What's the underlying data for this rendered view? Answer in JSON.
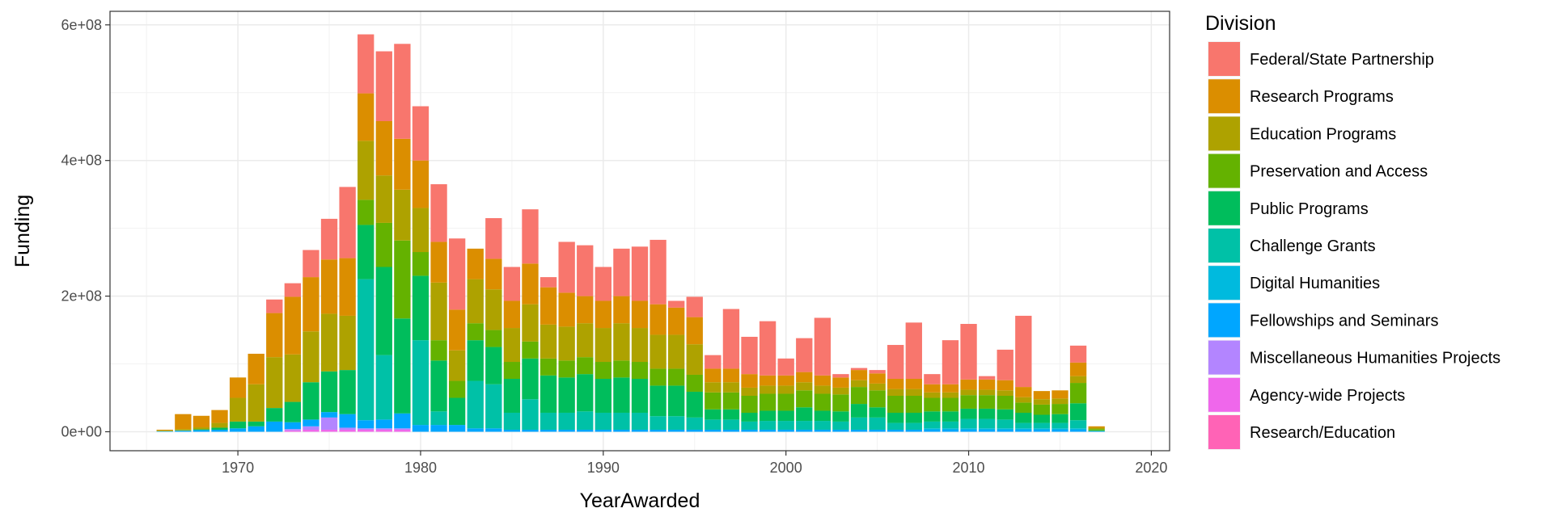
{
  "chart_data": {
    "type": "bar",
    "stacked": true,
    "xlabel": "YearAwarded",
    "ylabel": "Funding",
    "xlim": [
      1963,
      2021
    ],
    "ylim": [
      -28000000,
      620000000
    ],
    "xticks": [
      1970,
      1980,
      1990,
      2000,
      2010,
      2020
    ],
    "yticks": [
      0,
      200000000,
      400000000,
      600000000
    ],
    "ytick_labels": [
      "0e+00",
      "2e+08",
      "4e+08",
      "6e+08"
    ],
    "grid": true,
    "legend": {
      "title": "Division",
      "placement": "right",
      "items": [
        {
          "name": "Federal/State Partnership",
          "color": "#F8766D"
        },
        {
          "name": "Research Programs",
          "color": "#DB8E00"
        },
        {
          "name": "Education Programs",
          "color": "#AEA200"
        },
        {
          "name": "Preservation and Access",
          "color": "#64B200"
        },
        {
          "name": "Public Programs",
          "color": "#00BD5C"
        },
        {
          "name": "Challenge Grants",
          "color": "#00C1A7"
        },
        {
          "name": "Digital Humanities",
          "color": "#00BADE"
        },
        {
          "name": "Fellowships and Seminars",
          "color": "#00A6FF"
        },
        {
          "name": "Miscellaneous Humanities Projects",
          "color": "#B385FF"
        },
        {
          "name": "Agency-wide Projects",
          "color": "#EF67EB"
        },
        {
          "name": "Research/Education",
          "color": "#FF63B6"
        }
      ]
    },
    "x": [
      1966,
      1967,
      1968,
      1969,
      1970,
      1971,
      1972,
      1973,
      1974,
      1975,
      1976,
      1977,
      1978,
      1979,
      1980,
      1981,
      1982,
      1983,
      1984,
      1985,
      1986,
      1987,
      1988,
      1989,
      1990,
      1991,
      1992,
      1993,
      1994,
      1995,
      1996,
      1997,
      1998,
      1999,
      2000,
      2001,
      2002,
      2003,
      2004,
      2005,
      2006,
      2007,
      2008,
      2009,
      2010,
      2011,
      2012,
      2013,
      2014,
      2015,
      2016,
      2017
    ],
    "series": [
      {
        "name": "Research/Education",
        "values": [
          0,
          0,
          0,
          0,
          0,
          0,
          0,
          0,
          0,
          0,
          0,
          0,
          0,
          0,
          0,
          0,
          0,
          0,
          0,
          0,
          0,
          0,
          0,
          0,
          0,
          0,
          0,
          0,
          0,
          0,
          0,
          0,
          0,
          0,
          0,
          0,
          0,
          0,
          0,
          0,
          0,
          0,
          0,
          0,
          0,
          0,
          0,
          0,
          0,
          0,
          0,
          0
        ]
      },
      {
        "name": "Agency-wide Projects",
        "values": [
          0,
          0,
          0,
          0,
          0,
          0,
          0,
          2000000,
          3000000,
          3000000,
          3000000,
          3000000,
          3000000,
          3000000,
          0,
          0,
          0,
          0,
          0,
          0,
          0,
          0,
          0,
          0,
          0,
          0,
          0,
          0,
          0,
          0,
          0,
          0,
          0,
          0,
          0,
          0,
          0,
          0,
          0,
          0,
          0,
          0,
          0,
          0,
          0,
          0,
          0,
          0,
          0,
          0,
          0,
          0
        ]
      },
      {
        "name": "Miscellaneous Humanities Projects",
        "values": [
          0,
          0,
          0,
          0,
          0,
          0,
          0,
          2000000,
          5000000,
          18000000,
          3000000,
          2000000,
          2000000,
          2000000,
          0,
          0,
          0,
          0,
          0,
          0,
          0,
          0,
          0,
          0,
          0,
          0,
          0,
          0,
          0,
          0,
          0,
          0,
          0,
          0,
          0,
          0,
          0,
          0,
          0,
          0,
          0,
          0,
          0,
          0,
          0,
          0,
          0,
          0,
          0,
          0,
          0,
          0
        ]
      },
      {
        "name": "Fellowships and Seminars",
        "values": [
          500000,
          1500000,
          2500000,
          3000000,
          5000000,
          8000000,
          15000000,
          10000000,
          10000000,
          8000000,
          20000000,
          12000000,
          13000000,
          22000000,
          10000000,
          10000000,
          10000000,
          5000000,
          5000000,
          3000000,
          3000000,
          3000000,
          3000000,
          3000000,
          3000000,
          3000000,
          3000000,
          3000000,
          3000000,
          3000000,
          3000000,
          3000000,
          3000000,
          3000000,
          3000000,
          3000000,
          3000000,
          3000000,
          3000000,
          3000000,
          3000000,
          3000000,
          3000000,
          3000000,
          3000000,
          3000000,
          3000000,
          3000000,
          3000000,
          3000000,
          3000000,
          1000000
        ]
      },
      {
        "name": "Digital Humanities",
        "values": [
          0,
          0,
          0,
          0,
          0,
          0,
          0,
          0,
          0,
          0,
          0,
          0,
          0,
          0,
          0,
          0,
          0,
          0,
          0,
          0,
          0,
          0,
          0,
          0,
          0,
          0,
          0,
          0,
          0,
          0,
          0,
          0,
          0,
          0,
          0,
          0,
          0,
          0,
          0,
          0,
          0,
          0,
          2000000,
          2000000,
          2000000,
          2000000,
          2000000,
          2000000,
          2000000,
          2000000,
          2000000,
          0
        ]
      },
      {
        "name": "Challenge Grants",
        "values": [
          0,
          0,
          0,
          0,
          0,
          0,
          0,
          0,
          0,
          0,
          0,
          208000000,
          95000000,
          0,
          125000000,
          20000000,
          0,
          70000000,
          65000000,
          25000000,
          45000000,
          25000000,
          25000000,
          27000000,
          25000000,
          25000000,
          25000000,
          20000000,
          20000000,
          18000000,
          15000000,
          15000000,
          12000000,
          13000000,
          13000000,
          13000000,
          13000000,
          12000000,
          18000000,
          18000000,
          10000000,
          10000000,
          10000000,
          10000000,
          14000000,
          14000000,
          13000000,
          8000000,
          8000000,
          8000000,
          12000000,
          0
        ]
      },
      {
        "name": "Public Programs",
        "values": [
          500000,
          500000,
          1000000,
          3000000,
          10000000,
          7000000,
          20000000,
          30000000,
          55000000,
          60000000,
          65000000,
          80000000,
          130000000,
          140000000,
          95000000,
          75000000,
          40000000,
          60000000,
          55000000,
          50000000,
          60000000,
          55000000,
          52000000,
          55000000,
          50000000,
          52000000,
          50000000,
          45000000,
          45000000,
          38000000,
          15000000,
          15000000,
          13000000,
          15000000,
          15000000,
          20000000,
          15000000,
          15000000,
          20000000,
          15000000,
          15000000,
          15000000,
          15000000,
          15000000,
          15000000,
          15000000,
          15000000,
          15000000,
          12000000,
          13000000,
          25000000,
          1000000
        ]
      },
      {
        "name": "Preservation and Access",
        "values": [
          0,
          0,
          0,
          0,
          0,
          0,
          0,
          0,
          0,
          0,
          0,
          37000000,
          65000000,
          115000000,
          35000000,
          30000000,
          25000000,
          25000000,
          25000000,
          25000000,
          25000000,
          25000000,
          25000000,
          25000000,
          25000000,
          25000000,
          25000000,
          25000000,
          25000000,
          25000000,
          25000000,
          25000000,
          25000000,
          25000000,
          25000000,
          25000000,
          25000000,
          25000000,
          25000000,
          25000000,
          25000000,
          25000000,
          20000000,
          20000000,
          20000000,
          20000000,
          20000000,
          15000000,
          15000000,
          15000000,
          30000000,
          2000000
        ]
      },
      {
        "name": "Education Programs",
        "values": [
          500000,
          2000000,
          3000000,
          7000000,
          35000000,
          55000000,
          75000000,
          70000000,
          75000000,
          85000000,
          80000000,
          87000000,
          70000000,
          75000000,
          65000000,
          85000000,
          45000000,
          65000000,
          60000000,
          50000000,
          55000000,
          50000000,
          50000000,
          50000000,
          50000000,
          55000000,
          50000000,
          50000000,
          50000000,
          45000000,
          15000000,
          15000000,
          12000000,
          12000000,
          12000000,
          12000000,
          12000000,
          10000000,
          10000000,
          10000000,
          10000000,
          10000000,
          8000000,
          8000000,
          8000000,
          8000000,
          8000000,
          8000000,
          8000000,
          8000000,
          10000000,
          2000000
        ]
      },
      {
        "name": "Research Programs",
        "values": [
          1500000,
          22000000,
          17000000,
          19000000,
          30000000,
          45000000,
          65000000,
          85000000,
          80000000,
          80000000,
          85000000,
          70000000,
          80000000,
          75000000,
          70000000,
          60000000,
          60000000,
          45000000,
          45000000,
          40000000,
          60000000,
          55000000,
          50000000,
          40000000,
          40000000,
          40000000,
          40000000,
          45000000,
          40000000,
          40000000,
          20000000,
          20000000,
          20000000,
          15000000,
          15000000,
          15000000,
          15000000,
          15000000,
          15000000,
          15000000,
          15000000,
          15000000,
          12000000,
          12000000,
          15000000,
          15000000,
          15000000,
          15000000,
          12000000,
          12000000,
          20000000,
          2000000
        ]
      },
      {
        "name": "Federal/State Partnership",
        "values": [
          0,
          0,
          0,
          0,
          0,
          0,
          20000000,
          20000000,
          40000000,
          60000000,
          105000000,
          87000000,
          103000000,
          140000000,
          80000000,
          85000000,
          105000000,
          0,
          60000000,
          50000000,
          80000000,
          15000000,
          75000000,
          75000000,
          50000000,
          70000000,
          80000000,
          95000000,
          10000000,
          30000000,
          20000000,
          88000000,
          55000000,
          80000000,
          25000000,
          50000000,
          85000000,
          5000000,
          3000000,
          5000000,
          50000000,
          83000000,
          15000000,
          65000000,
          82000000,
          5000000,
          45000000,
          105000000,
          0,
          0,
          25000000,
          0
        ]
      }
    ]
  }
}
